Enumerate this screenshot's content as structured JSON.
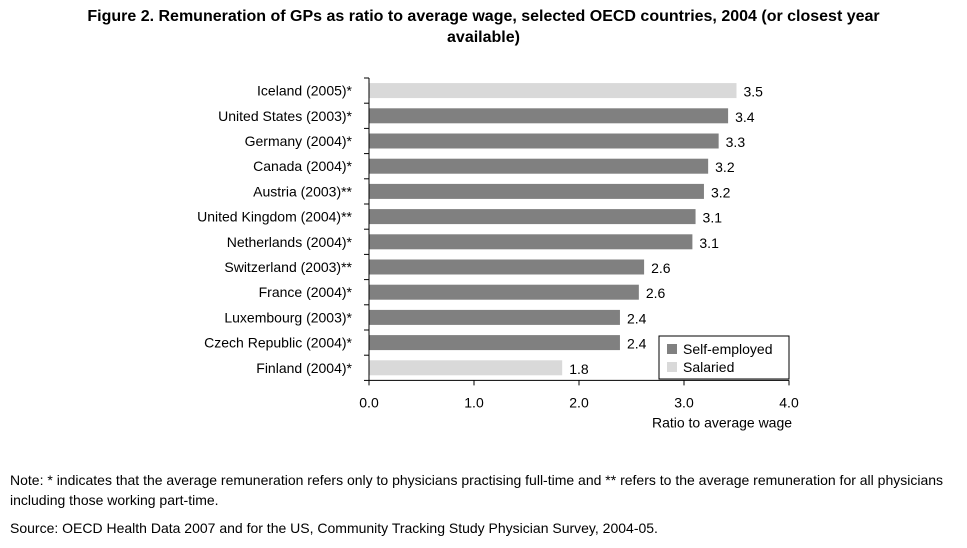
{
  "title_line1": "Figure 2. Remuneration of GPs as ratio to average wage, selected OECD countries, 2004 (or closest year",
  "title_line2": "available)",
  "chart_data": {
    "type": "bar",
    "orientation": "horizontal",
    "categories": [
      "Iceland (2005)*",
      "United States (2003)*",
      "Germany (2004)*",
      "Canada (2004)*",
      "Austria (2003)**",
      "United Kingdom (2004)**",
      "Netherlands (2004)*",
      "Switzerland (2003)**",
      "France (2004)*",
      "Luxembourg (2003)*",
      "Czech Republic (2004)*",
      "Finland (2004)*"
    ],
    "values": [
      3.5,
      3.42,
      3.33,
      3.23,
      3.19,
      3.11,
      3.08,
      2.62,
      2.57,
      2.39,
      2.39,
      1.84
    ],
    "value_labels": [
      "3.5",
      "3.4",
      "3.3",
      "3.2",
      "3.2",
      "3.1",
      "3.1",
      "2.6",
      "2.6",
      "2.4",
      "2.4",
      "1.8"
    ],
    "series_of_bar": [
      "Salaried",
      "Self-employed",
      "Self-employed",
      "Self-employed",
      "Self-employed",
      "Self-employed",
      "Self-employed",
      "Self-employed",
      "Self-employed",
      "Self-employed",
      "Self-employed",
      "Salaried"
    ],
    "legend": [
      {
        "name": "Self-employed",
        "color": "#808080"
      },
      {
        "name": "Salaried",
        "color": "#d9d9d9"
      }
    ],
    "xlabel": "Ratio to average wage",
    "xlim": [
      0,
      4
    ],
    "xticks": [
      "0.0",
      "1.0",
      "2.0",
      "3.0",
      "4.0"
    ],
    "xtick_values": [
      0,
      1,
      2,
      3,
      4
    ],
    "legend_position": "bottom-right"
  },
  "note": "Note: * indicates that the average remuneration refers only to physicians practising full-time and ** refers to the average remuneration for all physicians including those working part-time.",
  "source": "Source: OECD Health Data 2007 and for the US, Community Tracking Study Physician Survey, 2004-05."
}
